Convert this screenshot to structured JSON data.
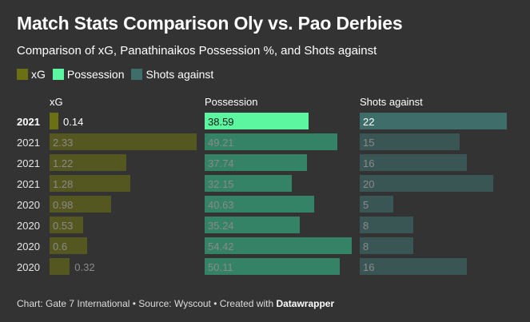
{
  "title": "Match Stats Comparison Oly vs. Pao Derbies",
  "subtitle": "Comparison of xG, Panathinaikos Possession %, and Shots against",
  "legend": [
    {
      "label": "xG",
      "color": "#6b7012"
    },
    {
      "label": "Possession",
      "color": "#5cf5a0"
    },
    {
      "label": "Shots against",
      "color": "#3f6e6a"
    }
  ],
  "footer": {
    "prefix": "Chart: Gate 7 International • Source: Wyscout • Created with ",
    "brand": "Datawrapper"
  },
  "colors": {
    "background": "#333333",
    "xg": "#6b7012",
    "possession_highlight": "#5cf5a0",
    "possession": "#35a27c",
    "shots": "#3f6e6a"
  },
  "chart_data": {
    "type": "bar",
    "orientation": "horizontal",
    "categories": [
      "2021",
      "2021",
      "2021",
      "2021",
      "2020",
      "2020",
      "2020",
      "2020"
    ],
    "highlighted_row": 0,
    "series": [
      {
        "name": "xG",
        "values": [
          0.14,
          2.33,
          1.22,
          1.28,
          0.98,
          0.53,
          0.6,
          0.32
        ],
        "labels": [
          "0.14",
          "2.33",
          "1.22",
          "1.28",
          "0.98",
          "0.53",
          "0.6",
          "0.32"
        ],
        "xlim": [
          0,
          2.33
        ]
      },
      {
        "name": "Possession",
        "values": [
          38.59,
          49.21,
          37.74,
          32.15,
          40.63,
          35.24,
          54.42,
          50.11
        ],
        "labels": [
          "38.59",
          "49.21",
          "37.74",
          "32.15",
          "40.63",
          "35.24",
          "54.42",
          "50.11"
        ],
        "xlim": [
          0,
          54.42
        ]
      },
      {
        "name": "Shots against",
        "values": [
          22,
          15,
          16,
          20,
          5,
          8,
          8,
          16
        ],
        "labels": [
          "22",
          "15",
          "16",
          "20",
          "5",
          "8",
          "8",
          "16"
        ],
        "xlim": [
          0,
          22
        ]
      }
    ]
  }
}
